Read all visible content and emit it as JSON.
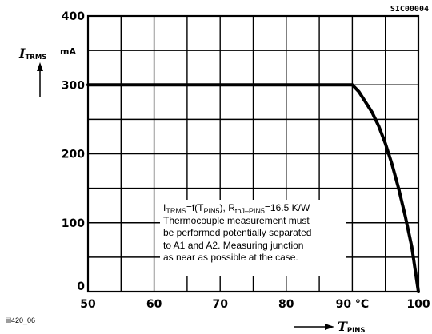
{
  "chart_data": {
    "type": "line",
    "title": "",
    "code_label": "SIC00004",
    "figure_id": "iil420_06",
    "xlabel": {
      "symbol": "T",
      "subscript": "PINS"
    },
    "ylabel": {
      "symbol": "I",
      "subscript": "TRMS",
      "unit": "mA"
    },
    "xlim": [
      50,
      100
    ],
    "ylim": [
      0,
      400
    ],
    "x_ticks": [
      50,
      60,
      70,
      80,
      90,
      100
    ],
    "x_tick_labels": [
      "50",
      "60",
      "70",
      "80",
      "90 °C",
      "100"
    ],
    "y_ticks": [
      0,
      100,
      200,
      300,
      400
    ],
    "y_tick_labels": [
      "0",
      "100",
      "200",
      "300",
      "400"
    ],
    "grid": true,
    "series": [
      {
        "x": [
          50,
          90,
          91,
          92,
          93,
          94,
          95,
          96,
          97,
          98,
          99,
          100
        ],
        "y": [
          300,
          300,
          290,
          275,
          260,
          240,
          215,
          185,
          150,
          110,
          65,
          0
        ]
      }
    ],
    "annotation": {
      "formula": {
        "i": "I",
        "i_sub": "TRMS",
        "mid": "=f(T",
        "t_sub": "PIN5",
        "close": "), R",
        "r_sub": "thJ–PIN5",
        "value": "=16.5 K/W"
      },
      "lines": [
        "Thermocouple measurement must",
        "be performed potentially separated",
        "to A1 and A2. Measuring junction",
        "as near as possible at the case."
      ]
    }
  }
}
